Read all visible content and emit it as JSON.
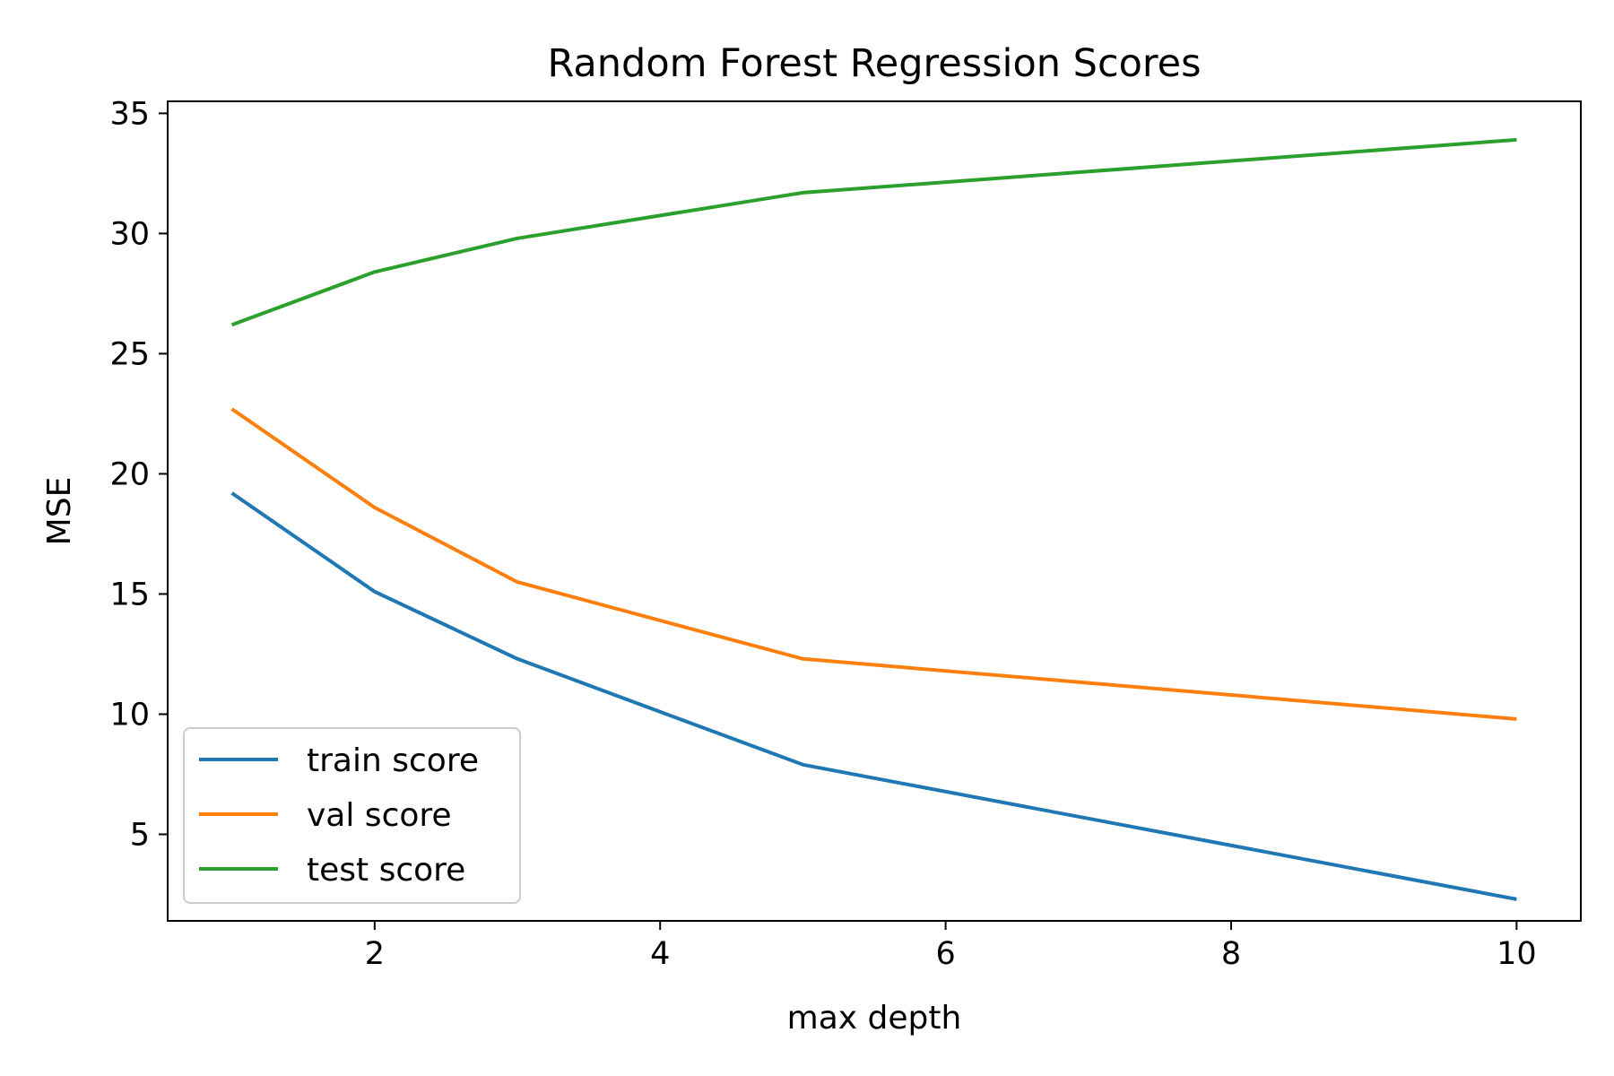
{
  "chart_data": {
    "type": "line",
    "title": "Random Forest Regression Scores",
    "xlabel": "max depth",
    "ylabel": "MSE",
    "x": [
      1,
      2,
      3,
      5,
      10
    ],
    "series": [
      {
        "name": "train score",
        "color": "#1f77b4",
        "values": [
          19.2,
          15.1,
          12.3,
          7.9,
          2.3
        ]
      },
      {
        "name": "val score",
        "color": "#ff7f0e",
        "values": [
          22.7,
          18.6,
          15.5,
          12.3,
          9.8
        ]
      },
      {
        "name": "test score",
        "color": "#2ca02c",
        "values": [
          26.2,
          28.4,
          29.8,
          31.7,
          33.9
        ]
      }
    ],
    "xticks": [
      2,
      4,
      6,
      8,
      10
    ],
    "yticks": [
      5,
      10,
      15,
      20,
      25,
      30,
      35
    ],
    "xlim": [
      0.55,
      10.45
    ],
    "ylim": [
      1.4,
      35.5
    ],
    "grid": false,
    "legend_position": "lower-left"
  }
}
